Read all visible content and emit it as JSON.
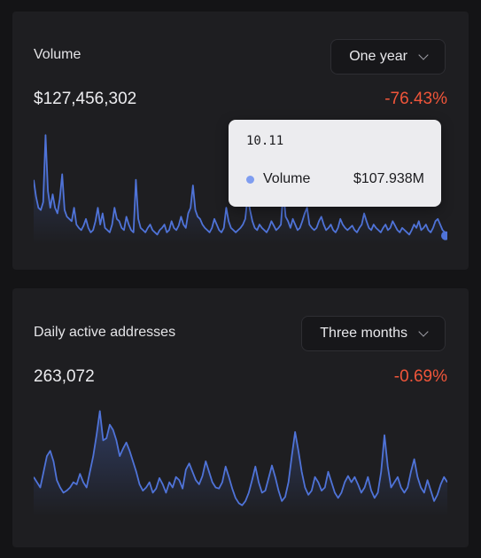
{
  "volume_card": {
    "title": "Volume",
    "range_selected": "One year",
    "value": "$127,456,302",
    "change": "-76.43%",
    "tooltip": {
      "date": "10.11",
      "series_label": "Volume",
      "value": "$107.938M"
    }
  },
  "daa_card": {
    "title": "Daily active addresses",
    "range_selected": "Three months",
    "value": "263,072",
    "change": "-0.69%"
  },
  "colors": {
    "line": "#4f73d8",
    "change_negative": "#f0553a",
    "tooltip_dot": "#7f9df0"
  },
  "chart_data": [
    {
      "type": "area",
      "values": [
        0.55,
        0.4,
        0.3,
        0.28,
        0.35,
        0.95,
        0.45,
        0.3,
        0.42,
        0.3,
        0.25,
        0.38,
        0.6,
        0.28,
        0.22,
        0.2,
        0.18,
        0.3,
        0.15,
        0.12,
        0.1,
        0.14,
        0.2,
        0.12,
        0.08,
        0.1,
        0.18,
        0.3,
        0.15,
        0.25,
        0.12,
        0.1,
        0.08,
        0.15,
        0.3,
        0.2,
        0.18,
        0.12,
        0.1,
        0.22,
        0.15,
        0.1,
        0.08,
        0.55,
        0.2,
        0.12,
        0.1,
        0.08,
        0.12,
        0.15,
        0.1,
        0.08,
        0.06,
        0.1,
        0.12,
        0.15,
        0.08,
        0.1,
        0.18,
        0.12,
        0.1,
        0.14,
        0.22,
        0.15,
        0.12,
        0.25,
        0.3,
        0.5,
        0.28,
        0.22,
        0.2,
        0.15,
        0.12,
        0.1,
        0.08,
        0.12,
        0.2,
        0.15,
        0.1,
        0.08,
        0.12,
        0.3,
        0.18,
        0.12,
        0.1,
        0.08,
        0.1,
        0.12,
        0.15,
        0.2,
        0.4,
        0.28,
        0.18,
        0.12,
        0.1,
        0.15,
        0.12,
        0.1,
        0.08,
        0.12,
        0.18,
        0.14,
        0.1,
        0.12,
        0.15,
        0.45,
        0.22,
        0.18,
        0.12,
        0.2,
        0.15,
        0.1,
        0.12,
        0.18,
        0.25,
        0.3,
        0.15,
        0.12,
        0.1,
        0.12,
        0.18,
        0.22,
        0.15,
        0.1,
        0.12,
        0.15,
        0.1,
        0.08,
        0.12,
        0.2,
        0.15,
        0.12,
        0.1,
        0.12,
        0.14,
        0.1,
        0.08,
        0.12,
        0.15,
        0.25,
        0.18,
        0.12,
        0.1,
        0.15,
        0.12,
        0.1,
        0.08,
        0.12,
        0.15,
        0.1,
        0.12,
        0.18,
        0.14,
        0.1,
        0.08,
        0.12,
        0.1,
        0.08,
        0.06,
        0.1,
        0.15,
        0.12,
        0.18,
        0.1,
        0.12,
        0.15,
        0.1,
        0.08,
        0.12,
        0.18,
        0.2,
        0.15,
        0.1,
        0.08,
        0.05
      ]
    },
    {
      "type": "area",
      "values": [
        0.35,
        0.3,
        0.25,
        0.4,
        0.55,
        0.6,
        0.5,
        0.32,
        0.25,
        0.2,
        0.22,
        0.25,
        0.3,
        0.28,
        0.38,
        0.3,
        0.25,
        0.4,
        0.55,
        0.75,
        0.98,
        0.7,
        0.72,
        0.85,
        0.8,
        0.7,
        0.55,
        0.62,
        0.68,
        0.6,
        0.5,
        0.4,
        0.28,
        0.22,
        0.25,
        0.3,
        0.2,
        0.24,
        0.34,
        0.28,
        0.2,
        0.3,
        0.25,
        0.35,
        0.32,
        0.24,
        0.42,
        0.48,
        0.4,
        0.32,
        0.28,
        0.36,
        0.5,
        0.4,
        0.3,
        0.25,
        0.24,
        0.3,
        0.45,
        0.35,
        0.24,
        0.15,
        0.1,
        0.08,
        0.12,
        0.2,
        0.32,
        0.45,
        0.3,
        0.2,
        0.22,
        0.34,
        0.46,
        0.35,
        0.22,
        0.12,
        0.16,
        0.3,
        0.55,
        0.78,
        0.6,
        0.4,
        0.25,
        0.18,
        0.22,
        0.35,
        0.3,
        0.22,
        0.25,
        0.4,
        0.3,
        0.2,
        0.15,
        0.2,
        0.3,
        0.36,
        0.3,
        0.35,
        0.28,
        0.2,
        0.25,
        0.35,
        0.22,
        0.15,
        0.2,
        0.4,
        0.75,
        0.45,
        0.25,
        0.3,
        0.35,
        0.25,
        0.2,
        0.25,
        0.4,
        0.52,
        0.35,
        0.25,
        0.2,
        0.32,
        0.22,
        0.12,
        0.18,
        0.28,
        0.35,
        0.3
      ]
    }
  ]
}
